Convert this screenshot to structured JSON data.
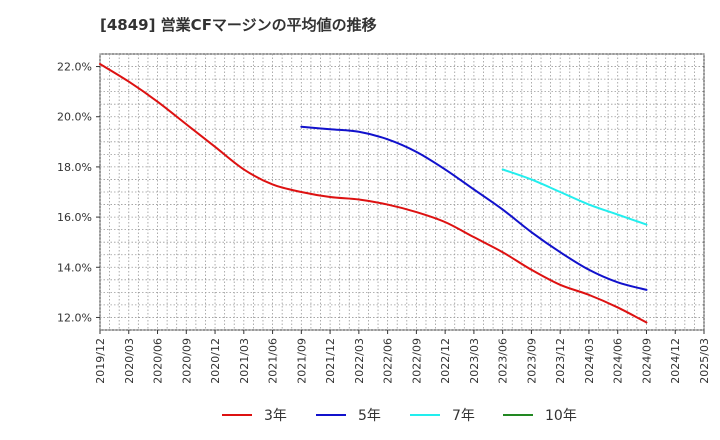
{
  "chart_data": {
    "type": "line",
    "title": "[4849]  営業CFマージンの平均値の推移",
    "x_ticks": [
      "2019/12",
      "2020/03",
      "2020/06",
      "2020/09",
      "2020/12",
      "2021/03",
      "2021/06",
      "2021/09",
      "2021/12",
      "2022/03",
      "2022/06",
      "2022/09",
      "2022/12",
      "2023/03",
      "2023/06",
      "2023/09",
      "2023/12",
      "2024/03",
      "2024/06",
      "2024/09",
      "2024/12",
      "2025/03"
    ],
    "y_ticks": [
      "12.0%",
      "14.0%",
      "16.0%",
      "18.0%",
      "20.0%",
      "22.0%"
    ],
    "ylim": [
      11.5,
      22.5
    ],
    "y_unit": "%",
    "grid": true,
    "legend_position": "bottom",
    "series": [
      {
        "name": "3年",
        "color": "#dd1111",
        "x": [
          "2019/12",
          "2020/03",
          "2020/06",
          "2020/09",
          "2020/12",
          "2021/03",
          "2021/06",
          "2021/09",
          "2021/12",
          "2022/03",
          "2022/06",
          "2022/09",
          "2022/12",
          "2023/03",
          "2023/06",
          "2023/09",
          "2023/12",
          "2024/03",
          "2024/06",
          "2024/09"
        ],
        "values": [
          22.1,
          21.4,
          20.6,
          19.7,
          18.8,
          17.9,
          17.3,
          17.0,
          16.8,
          16.7,
          16.5,
          16.2,
          15.8,
          15.2,
          14.6,
          13.9,
          13.3,
          12.9,
          12.4,
          11.8
        ]
      },
      {
        "name": "5年",
        "color": "#1111cc",
        "x": [
          "2021/09",
          "2021/12",
          "2022/03",
          "2022/06",
          "2022/09",
          "2022/12",
          "2023/03",
          "2023/06",
          "2023/09",
          "2023/12",
          "2024/03",
          "2024/06",
          "2024/09"
        ],
        "values": [
          19.6,
          19.5,
          19.4,
          19.1,
          18.6,
          17.9,
          17.1,
          16.3,
          15.4,
          14.6,
          13.9,
          13.4,
          13.1
        ]
      },
      {
        "name": "7年",
        "color": "#22eeee",
        "x": [
          "2023/06",
          "2023/09",
          "2023/12",
          "2024/03",
          "2024/06",
          "2024/09"
        ],
        "values": [
          17.9,
          17.5,
          17.0,
          16.5,
          16.1,
          15.7
        ]
      },
      {
        "name": "10年",
        "color": "#228822",
        "x": [],
        "values": []
      }
    ]
  }
}
